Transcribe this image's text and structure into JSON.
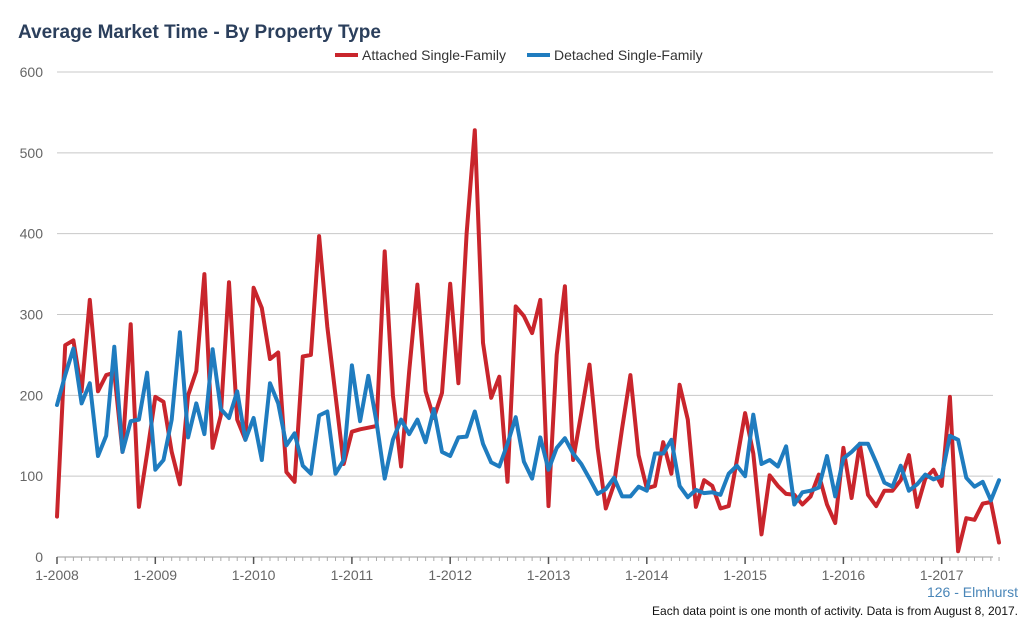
{
  "chart_data": {
    "type": "line",
    "title": "Average Market Time - By Property Type",
    "ylim": [
      0,
      600
    ],
    "y_ticks": [
      0,
      100,
      200,
      300,
      400,
      500,
      600
    ],
    "x_tick_labels": [
      "1-2008",
      "1-2009",
      "1-2010",
      "1-2011",
      "1-2012",
      "1-2013",
      "1-2014",
      "1-2015",
      "1-2016",
      "1-2017"
    ],
    "x_start": "1-2008",
    "grid": true,
    "legend_position": "top-center",
    "series": [
      {
        "name": "Attached Single-Family",
        "color": "#c9252c",
        "values": [
          50,
          262,
          268,
          205,
          318,
          205,
          225,
          228,
          130,
          288,
          62,
          128,
          198,
          192,
          130,
          90,
          200,
          230,
          350,
          135,
          175,
          340,
          170,
          145,
          333,
          308,
          245,
          253,
          105,
          93,
          248,
          250,
          397,
          285,
          200,
          115,
          155,
          158,
          160,
          162,
          378,
          200,
          112,
          230,
          337,
          205,
          172,
          203,
          338,
          215,
          400,
          528,
          265,
          197,
          223,
          93,
          310,
          298,
          277,
          318,
          63,
          250,
          335,
          120,
          178,
          238,
          135,
          60,
          90,
          160,
          225,
          126,
          85,
          88,
          142,
          103,
          213,
          170,
          62,
          95,
          88,
          60,
          63,
          120,
          178,
          128,
          28,
          101,
          88,
          78,
          77,
          65,
          75,
          102,
          65,
          42,
          135,
          73,
          140,
          77,
          63,
          82,
          82,
          95,
          126,
          62,
          97,
          108,
          88,
          198,
          7,
          48,
          46,
          66,
          68,
          18
        ],
        "mark_name": "attached-series-line"
      },
      {
        "name": "Detached Single-Family",
        "color": "#1f7cbf",
        "values": [
          188,
          225,
          258,
          190,
          215,
          125,
          150,
          260,
          130,
          168,
          170,
          228,
          108,
          120,
          170,
          278,
          148,
          190,
          152,
          257,
          183,
          172,
          205,
          145,
          172,
          120,
          215,
          190,
          138,
          153,
          113,
          103,
          175,
          180,
          103,
          120,
          237,
          168,
          224,
          167,
          97,
          145,
          170,
          152,
          170,
          142,
          183,
          130,
          125,
          148,
          149,
          180,
          140,
          117,
          112,
          140,
          173,
          118,
          97,
          148,
          108,
          135,
          147,
          128,
          115,
          97,
          78,
          84,
          98,
          75,
          75,
          87,
          82,
          128,
          128,
          145,
          88,
          74,
          83,
          79,
          80,
          77,
          103,
          113,
          100,
          176,
          115,
          120,
          112,
          137,
          65,
          80,
          82,
          86,
          125,
          75,
          122,
          130,
          140,
          140,
          117,
          92,
          87,
          113,
          82,
          90,
          102,
          96,
          100,
          150,
          145,
          98,
          87,
          93,
          70,
          95
        ],
        "mark_name": "detached-series-line"
      }
    ]
  },
  "credit": "126 - Elmhurst",
  "footnote": "Each data point is one month of activity. Data is from August 8, 2017."
}
